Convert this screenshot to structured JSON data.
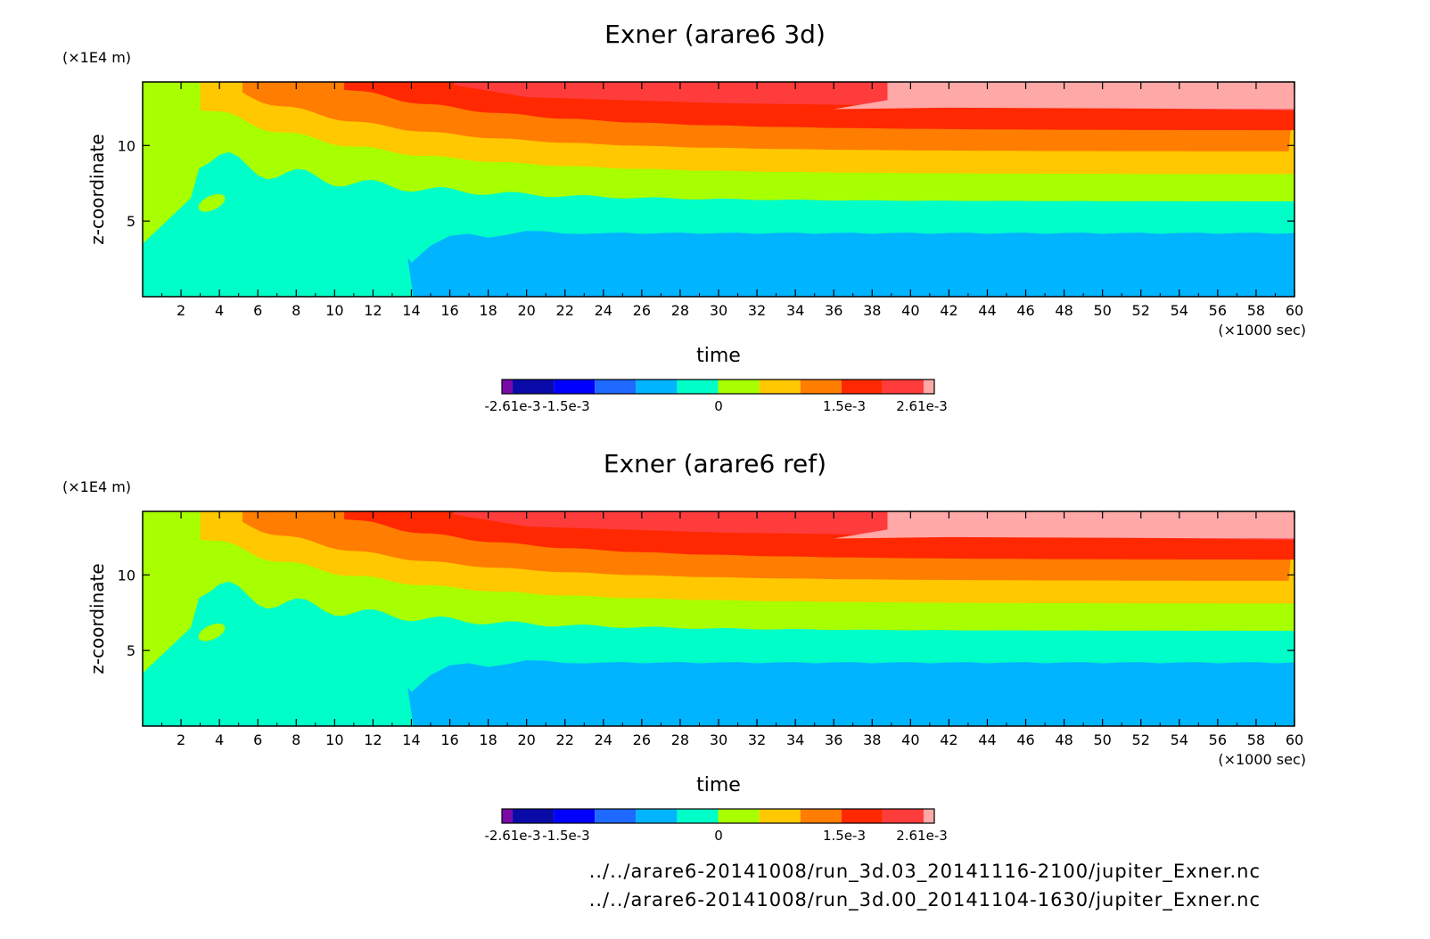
{
  "chart_data": [
    {
      "type": "heatmap",
      "title": "Exner (arare6 3d)",
      "xlabel": "time",
      "x_unit": "(×1000 sec)",
      "ylabel": "z-coordinate",
      "y_unit": "(×1E4 m)",
      "xlim": [
        0,
        60
      ],
      "ylim": [
        0,
        14.2
      ],
      "xticks": [
        "2",
        "4",
        "6",
        "8",
        "10",
        "12",
        "14",
        "16",
        "18",
        "20",
        "22",
        "24",
        "26",
        "28",
        "30",
        "32",
        "34",
        "36",
        "38",
        "40",
        "42",
        "44",
        "46",
        "48",
        "50",
        "52",
        "54",
        "56",
        "58",
        "60"
      ],
      "yticks": [
        "5",
        "10"
      ],
      "colorbar": {
        "ticks": [
          "-2.61e-3",
          "-1.5e-3",
          "0",
          "1.5e-3",
          "2.61e-3"
        ],
        "colors": [
          "#7a0aa8",
          "#0a0aa8",
          "#0000ff",
          "#1e69ff",
          "#00b4ff",
          "#00ffc8",
          "#a8ff00",
          "#ffc800",
          "#ff7d00",
          "#ff2800",
          "#ff3c3c",
          "#ffa8a8"
        ]
      },
      "bands_z_top_at_late_time": [
        {
          "level": "#00b4ff",
          "z": 4.2
        },
        {
          "level": "#00ffc8",
          "z": 6.3
        },
        {
          "level": "#a8ff00",
          "z": 8.1
        },
        {
          "level": "#ffc800",
          "z": 9.6
        },
        {
          "level": "#ff7d00",
          "z": 11.0
        },
        {
          "level": "#ff2800",
          "z": 12.3
        },
        {
          "level": "#ffa8a8",
          "z": 14.2
        }
      ]
    },
    {
      "type": "heatmap",
      "title": "Exner (arare6 ref)",
      "xlabel": "time",
      "x_unit": "(×1000 sec)",
      "ylabel": "z-coordinate",
      "y_unit": "(×1E4 m)",
      "xlim": [
        0,
        60
      ],
      "ylim": [
        0,
        14.2
      ],
      "xticks": [
        "2",
        "4",
        "6",
        "8",
        "10",
        "12",
        "14",
        "16",
        "18",
        "20",
        "22",
        "24",
        "26",
        "28",
        "30",
        "32",
        "34",
        "36",
        "38",
        "40",
        "42",
        "44",
        "46",
        "48",
        "50",
        "52",
        "54",
        "56",
        "58",
        "60"
      ],
      "yticks": [
        "5",
        "10"
      ],
      "colorbar": {
        "ticks": [
          "-2.61e-3",
          "-1.5e-3",
          "0",
          "1.5e-3",
          "2.61e-3"
        ],
        "colors": [
          "#7a0aa8",
          "#0a0aa8",
          "#0000ff",
          "#1e69ff",
          "#00b4ff",
          "#00ffc8",
          "#a8ff00",
          "#ffc800",
          "#ff7d00",
          "#ff2800",
          "#ff3c3c",
          "#ffa8a8"
        ]
      },
      "bands_z_top_at_late_time": [
        {
          "level": "#00b4ff",
          "z": 4.2
        },
        {
          "level": "#00ffc8",
          "z": 6.3
        },
        {
          "level": "#a8ff00",
          "z": 8.1
        },
        {
          "level": "#ffc800",
          "z": 9.6
        },
        {
          "level": "#ff7d00",
          "z": 11.0
        },
        {
          "level": "#ff2800",
          "z": 12.3
        },
        {
          "level": "#ffa8a8",
          "z": 14.2
        }
      ]
    }
  ],
  "footer": {
    "file1": "../../arare6-20141008/run_3d.03_20141116-2100/jupiter_Exner.nc",
    "file2": "../../arare6-20141008/run_3d.00_20141104-1630/jupiter_Exner.nc"
  }
}
